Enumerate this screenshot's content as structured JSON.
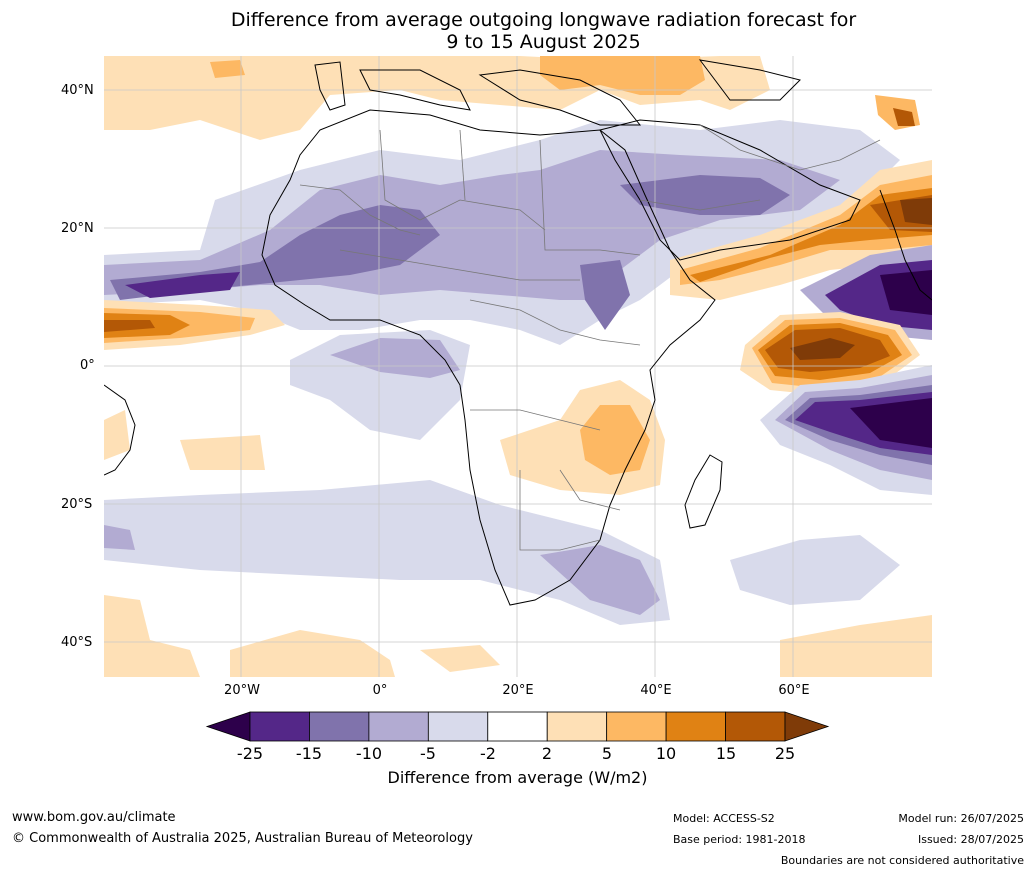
{
  "title_line1": "Difference from average outgoing longwave radiation forecast for",
  "title_line2": "9 to 15 August 2025",
  "lat_labels": [
    "40°N",
    "20°N",
    "0°",
    "20°S",
    "40°S"
  ],
  "lon_labels": [
    "20°W",
    "0°",
    "20°E",
    "40°E",
    "60°E"
  ],
  "colorbar": {
    "ticks": [
      "-25",
      "-15",
      "-10",
      "-5",
      "-2",
      "2",
      "5",
      "10",
      "15",
      "25"
    ],
    "colors": [
      "#2d004b",
      "#542788",
      "#8073ac",
      "#b2abd2",
      "#d8daeb",
      "#ffffff",
      "#fee0b6",
      "#fdb863",
      "#e08214",
      "#b35806",
      "#7f3b08"
    ],
    "label": "Difference from average (W/m2)"
  },
  "footer": {
    "website": "www.bom.gov.au/climate",
    "copyright": "© Commonwealth of Australia 2025, Australian Bureau of Meteorology",
    "model": "Model: ACCESS-S2",
    "base_period": "Base period: 1981-2018",
    "model_run": "Model run: 26/07/2025",
    "issued": "Issued: 28/07/2025",
    "disclaimer": "Boundaries are not considered authoritative"
  }
}
